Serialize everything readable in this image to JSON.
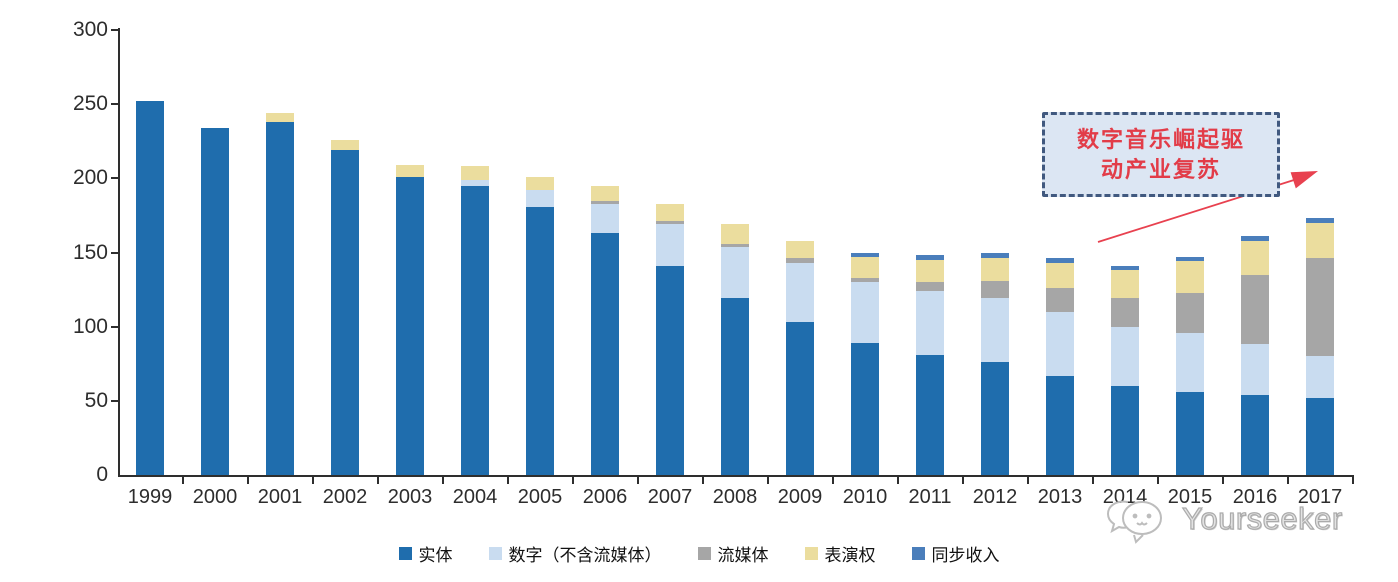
{
  "chart_data": {
    "type": "bar",
    "stacked": true,
    "title": "",
    "xlabel": "",
    "ylabel": "",
    "ylim": [
      0,
      300
    ],
    "yticks": [
      0,
      50,
      100,
      150,
      200,
      250,
      300
    ],
    "grid": false,
    "legend_position": "bottom",
    "axis_color": "#2e2e2e",
    "categories": [
      "1999",
      "2000",
      "2001",
      "2002",
      "2003",
      "2004",
      "2005",
      "2006",
      "2007",
      "2008",
      "2009",
      "2010",
      "2011",
      "2012",
      "2013",
      "2014",
      "2015",
      "2016",
      "2017"
    ],
    "series": [
      {
        "name": "实体",
        "color": "#1f6dad",
        "values": [
          252,
          234,
          238,
          219,
          201,
          195,
          181,
          163,
          141,
          119,
          103,
          89,
          81,
          76,
          67,
          60,
          56,
          54,
          52
        ]
      },
      {
        "name": "数字（不含流媒体）",
        "color": "#c9dcf0",
        "values": [
          0,
          0,
          0,
          0,
          0,
          4,
          11,
          20,
          28,
          35,
          40,
          41,
          43,
          43,
          43,
          40,
          40,
          34,
          28
        ]
      },
      {
        "name": "流媒体",
        "color": "#a6a6a6",
        "values": [
          0,
          0,
          0,
          0,
          0,
          0,
          0,
          2,
          2,
          2,
          3,
          3,
          6,
          12,
          16,
          19,
          27,
          47,
          66
        ]
      },
      {
        "name": "表演权",
        "color": "#ebdd9e",
        "values": [
          0,
          0,
          6,
          7,
          8,
          9,
          9,
          10,
          12,
          13,
          12,
          14,
          15,
          15,
          17,
          19,
          21,
          23,
          24
        ]
      },
      {
        "name": "同步收入",
        "color": "#4a7ebb",
        "values": [
          0,
          0,
          0,
          0,
          0,
          0,
          0,
          0,
          0,
          0,
          0,
          3,
          3,
          4,
          3,
          3,
          3,
          3,
          3
        ]
      }
    ],
    "totals": [
      252,
      234,
      244,
      226,
      209,
      208,
      201,
      195,
      183,
      169,
      158,
      150,
      148,
      150,
      146,
      141,
      147,
      161,
      173
    ]
  },
  "annotation": {
    "line1": "数字音乐崛起驱",
    "line2": "动产业复苏",
    "text_color": "#e23c48",
    "box_fill": "#dce6f3",
    "box_border": "#41597f",
    "arrow_color": "#e8414f"
  },
  "watermark": {
    "brand": "Yourseeker"
  }
}
